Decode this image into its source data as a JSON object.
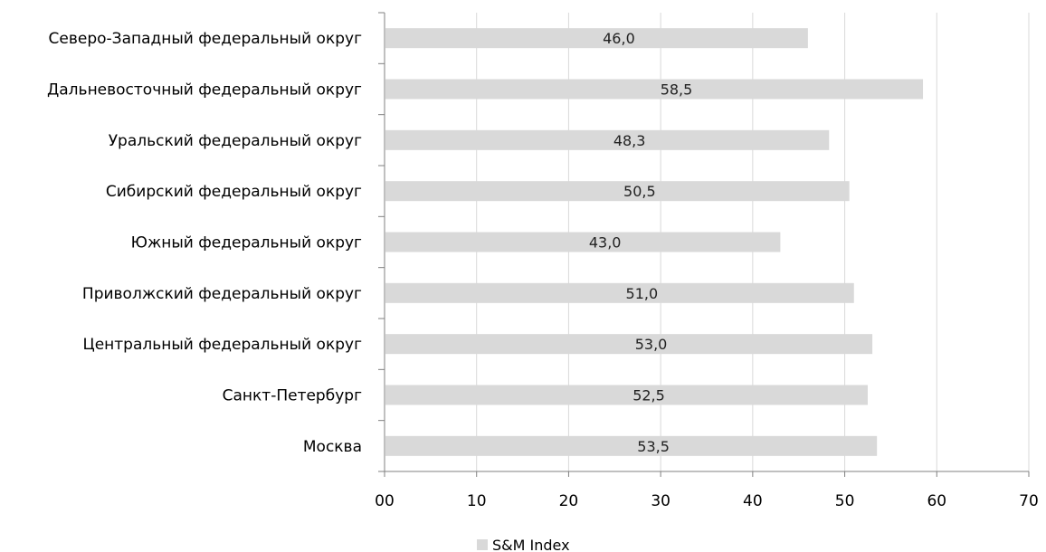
{
  "chart_data": {
    "type": "bar",
    "orientation": "horizontal",
    "categories": [
      "Северо-Западный федеральный округ",
      "Дальневосточный федеральный округ",
      "Уральский федеральный округ",
      "Сибирский федеральный округ",
      "Южный федеральный округ",
      "Приволжский федеральный округ",
      "Центральный федеральный округ",
      "Санкт-Петербург",
      "Москва"
    ],
    "series": [
      {
        "name": "S&M Index",
        "values": [
          46.0,
          58.5,
          48.3,
          50.5,
          43.0,
          51.0,
          53.0,
          52.5,
          53.5
        ],
        "data_labels": [
          "46,0",
          "58,5",
          "48,3",
          "50,5",
          "43,0",
          "51,0",
          "53,0",
          "52,5",
          "53,5"
        ]
      }
    ],
    "x_ticks": [
      "00",
      "10",
      "20",
      "30",
      "40",
      "50",
      "60",
      "70"
    ],
    "xlim": [
      0,
      70
    ],
    "grid": "vertical",
    "legend_position": "bottom",
    "title": "",
    "xlabel": "",
    "ylabel": "",
    "colors": {
      "bar": "#d9d9d9",
      "grid": "#d9d9d9",
      "axis": "#808080"
    }
  }
}
